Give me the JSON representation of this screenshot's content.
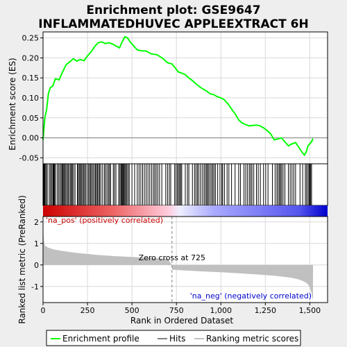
{
  "chart_data": {
    "type": "line",
    "title_line1": "Enrichment plot: GSE9647",
    "title_line2": "INFLAMMATEDHUVEC APPLEEXTRACT 6H",
    "es_panel": {
      "ylabel": "Enrichment score (ES)",
      "ylim": [
        -0.065,
        0.265
      ],
      "yticks": [
        -0.05,
        0.0,
        0.05,
        0.1,
        0.15,
        0.2,
        0.25
      ],
      "ytick_labels": [
        "-0.05",
        "0.00",
        "0.05",
        "0.10",
        "0.15",
        "0.20",
        "0.25"
      ],
      "series_name": "Enrichment profile",
      "color": "#00ff00",
      "points": [
        [
          0,
          -0.005
        ],
        [
          10,
          0.05
        ],
        [
          20,
          0.07
        ],
        [
          30,
          0.11
        ],
        [
          40,
          0.125
        ],
        [
          55,
          0.13
        ],
        [
          70,
          0.148
        ],
        [
          90,
          0.145
        ],
        [
          110,
          0.165
        ],
        [
          130,
          0.183
        ],
        [
          150,
          0.19
        ],
        [
          170,
          0.198
        ],
        [
          190,
          0.192
        ],
        [
          210,
          0.196
        ],
        [
          230,
          0.193
        ],
        [
          250,
          0.205
        ],
        [
          270,
          0.215
        ],
        [
          290,
          0.228
        ],
        [
          310,
          0.238
        ],
        [
          330,
          0.24
        ],
        [
          350,
          0.236
        ],
        [
          370,
          0.238
        ],
        [
          390,
          0.235
        ],
        [
          410,
          0.23
        ],
        [
          430,
          0.225
        ],
        [
          445,
          0.24
        ],
        [
          460,
          0.253
        ],
        [
          475,
          0.25
        ],
        [
          490,
          0.24
        ],
        [
          510,
          0.23
        ],
        [
          530,
          0.22
        ],
        [
          550,
          0.218
        ],
        [
          580,
          0.217
        ],
        [
          610,
          0.21
        ],
        [
          640,
          0.208
        ],
        [
          670,
          0.2
        ],
        [
          700,
          0.188
        ],
        [
          725,
          0.185
        ],
        [
          740,
          0.177
        ],
        [
          760,
          0.165
        ],
        [
          780,
          0.162
        ],
        [
          800,
          0.158
        ],
        [
          820,
          0.15
        ],
        [
          840,
          0.143
        ],
        [
          860,
          0.135
        ],
        [
          880,
          0.128
        ],
        [
          900,
          0.122
        ],
        [
          920,
          0.117
        ],
        [
          940,
          0.11
        ],
        [
          960,
          0.108
        ],
        [
          980,
          0.103
        ],
        [
          1000,
          0.1
        ],
        [
          1020,
          0.095
        ],
        [
          1040,
          0.085
        ],
        [
          1060,
          0.072
        ],
        [
          1080,
          0.06
        ],
        [
          1100,
          0.045
        ],
        [
          1120,
          0.037
        ],
        [
          1140,
          0.033
        ],
        [
          1160,
          0.03
        ],
        [
          1180,
          0.031
        ],
        [
          1200,
          0.032
        ],
        [
          1220,
          0.03
        ],
        [
          1240,
          0.025
        ],
        [
          1260,
          0.018
        ],
        [
          1280,
          0.01
        ],
        [
          1300,
          -0.005
        ],
        [
          1320,
          -0.003
        ],
        [
          1340,
          0.0
        ],
        [
          1360,
          -0.01
        ],
        [
          1380,
          -0.02
        ],
        [
          1400,
          -0.015
        ],
        [
          1420,
          -0.012
        ],
        [
          1440,
          -0.025
        ],
        [
          1460,
          -0.038
        ],
        [
          1470,
          -0.043
        ],
        [
          1480,
          -0.035
        ],
        [
          1490,
          -0.02
        ],
        [
          1500,
          -0.015
        ],
        [
          1510,
          -0.01
        ],
        [
          1518,
          -0.002
        ]
      ]
    },
    "ranked_panel": {
      "ylabel": "Ranked list metric (PreRanked)",
      "xlabel": "Rank in Ordered Dataset",
      "ylim": [
        -1.75,
        2.25
      ],
      "yticks": [
        -1,
        0,
        1,
        2
      ],
      "ytick_labels": [
        "-1",
        "0",
        "1",
        "2"
      ],
      "xlim": [
        0,
        1600
      ],
      "xticks": [
        0,
        250,
        500,
        750,
        1000,
        1250,
        1500
      ],
      "xtick_labels": [
        "0",
        "250",
        "500",
        "750",
        "1,000",
        "1,250",
        "1,500"
      ],
      "fill_color": "#c0c0c0",
      "profile": [
        [
          0,
          1.8
        ],
        [
          4,
          1.2
        ],
        [
          10,
          0.9
        ],
        [
          30,
          0.8
        ],
        [
          60,
          0.72
        ],
        [
          100,
          0.66
        ],
        [
          150,
          0.6
        ],
        [
          200,
          0.55
        ],
        [
          300,
          0.47
        ],
        [
          400,
          0.41
        ],
        [
          500,
          0.37
        ],
        [
          600,
          0.33
        ],
        [
          700,
          0.29
        ],
        [
          725,
          0.0
        ],
        [
          726,
          -0.22
        ],
        [
          800,
          -0.26
        ],
        [
          900,
          -0.3
        ],
        [
          1000,
          -0.34
        ],
        [
          1100,
          -0.39
        ],
        [
          1200,
          -0.44
        ],
        [
          1300,
          -0.5
        ],
        [
          1350,
          -0.55
        ],
        [
          1400,
          -0.6
        ],
        [
          1440,
          -0.68
        ],
        [
          1470,
          -0.78
        ],
        [
          1490,
          -0.9
        ],
        [
          1500,
          -1.05
        ],
        [
          1510,
          -1.3
        ],
        [
          1515,
          -1.55
        ],
        [
          1518,
          -1.65
        ]
      ],
      "zero_cross_label": "Zero cross at 725",
      "zero_cross_rank": 725,
      "pos_label": "'na_pos' (positively correlated)",
      "neg_label": "'na_neg' (negatively correlated)",
      "pos_color": "#cc0000",
      "neg_color": "#0000cc"
    },
    "hits": [
      3,
      6,
      9,
      12,
      18,
      24,
      35,
      42,
      48,
      55,
      58,
      61,
      65,
      70,
      80,
      88,
      95,
      102,
      108,
      112,
      117,
      122,
      128,
      135,
      141,
      147,
      155,
      160,
      165,
      172,
      180,
      193,
      198,
      204,
      210,
      215,
      221,
      228,
      233,
      240,
      248,
      256,
      262,
      268,
      274,
      281,
      288,
      295,
      300,
      306,
      312,
      318,
      325,
      335,
      345,
      352,
      360,
      368,
      374,
      380,
      395,
      402,
      410,
      425,
      432,
      438,
      442,
      446,
      450,
      455,
      460,
      465,
      471,
      478,
      485,
      500,
      515,
      530,
      540,
      550,
      560,
      570,
      580,
      590,
      600,
      610,
      620,
      628,
      636,
      645,
      655,
      668,
      690,
      700,
      710,
      718,
      740,
      748,
      755,
      762,
      768,
      774,
      780,
      800,
      812,
      820,
      840,
      852,
      860,
      868,
      875,
      885,
      895,
      905,
      912,
      920,
      925,
      932,
      940,
      948,
      955,
      962,
      970,
      982,
      995,
      1005,
      1010,
      1020,
      1035,
      1045,
      1060,
      1080,
      1100,
      1110,
      1130,
      1140,
      1150,
      1160,
      1168,
      1175,
      1185,
      1200,
      1210,
      1222,
      1240,
      1252,
      1265,
      1290,
      1305,
      1315,
      1322,
      1330,
      1335,
      1342,
      1350,
      1360,
      1380,
      1390,
      1400,
      1410,
      1420,
      1445,
      1460,
      1475,
      1482,
      1490,
      1496,
      1500,
      1505,
      1510
    ],
    "total_rank": 1520,
    "legend": {
      "position": "bottom",
      "items": [
        {
          "name": "Enrichment profile",
          "color": "#00ff00"
        },
        {
          "name": "Hits",
          "color": "#000000"
        },
        {
          "name": "Ranking metric scores",
          "color": "#c0c0c0"
        }
      ]
    }
  }
}
